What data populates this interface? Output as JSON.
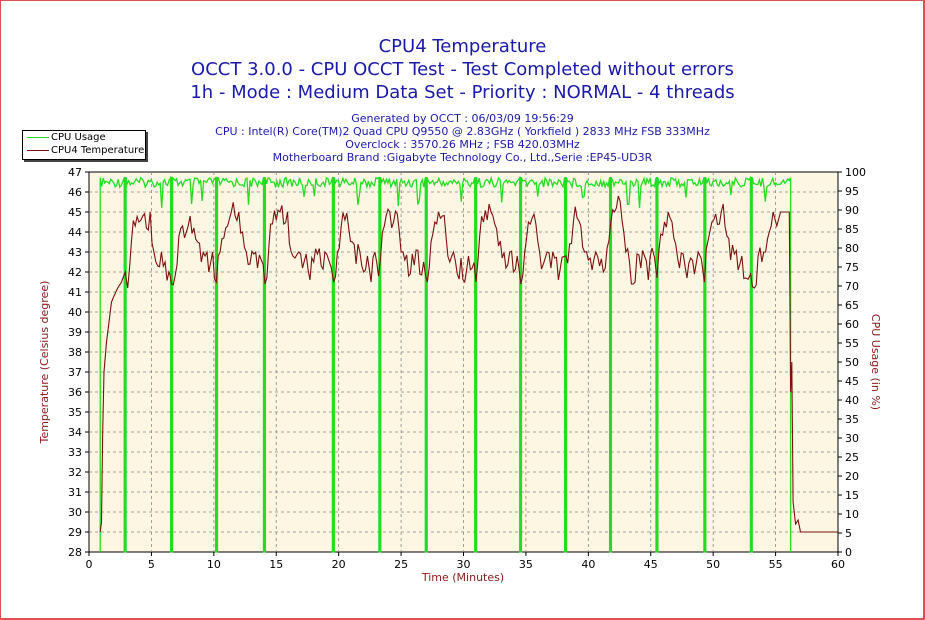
{
  "chart_data": {
    "type": "line",
    "title": "CPU4 Temperature",
    "subtitle_lines": [
      "OCCT 3.0.0 - CPU OCCT Test - Test Completed without errors",
      "1h - Mode : Medium Data Set - Priority : NORMAL - 4 threads"
    ],
    "info_lines": [
      "Generated by OCCT : 06/03/09 19:56:29",
      "CPU : Intel(R) Core(TM)2 Quad CPU Q9550 @ 2.83GHz ( Yorkfield ) 2833 MHz FSB 333MHz",
      "Overclock : 3570.26 MHz ; FSB 420.03MHz",
      "Motherboard Brand :Gigabyte Technology Co., Ltd.,Serie :EP45-UD3R"
    ],
    "xlabel": "Time (Minutes)",
    "ylabel_left": "Temperature (Celsius degree)",
    "ylabel_right": "CPU Usage (in %)",
    "xlim": [
      0,
      60
    ],
    "ylim_left": [
      28,
      47
    ],
    "ylim_right": [
      0,
      100
    ],
    "x_ticks": [
      0,
      5,
      10,
      15,
      20,
      25,
      30,
      35,
      40,
      45,
      50,
      55,
      60
    ],
    "y_left_ticks": [
      28,
      29,
      30,
      31,
      32,
      33,
      34,
      35,
      36,
      37,
      38,
      39,
      40,
      41,
      42,
      43,
      44,
      45,
      46,
      47
    ],
    "y_right_ticks": [
      0,
      5,
      10,
      15,
      20,
      25,
      30,
      35,
      40,
      45,
      50,
      55,
      60,
      65,
      70,
      75,
      80,
      85,
      90,
      95,
      100
    ],
    "grid": true,
    "legend_position": "top-left",
    "series": [
      {
        "name": "CPU Usage",
        "color": "#22dd22",
        "axis": "right",
        "start": 0.9,
        "end": 56.2,
        "baseline": 98.5,
        "dips": [
          2.9,
          6.6,
          10.2,
          14.0,
          19.6,
          23.3,
          27.0,
          31.0,
          34.6,
          38.2,
          41.8,
          45.5,
          49.3,
          53.0
        ],
        "spikes_low": [
          5.8,
          8.2,
          9.1,
          12.8,
          17.2,
          18.1,
          21.6,
          24.8,
          26.4,
          29.8,
          33.1,
          35.9,
          39.6,
          43.2,
          44.1,
          47.8,
          51.4,
          54.2
        ]
      },
      {
        "name": "CPU4 Temperature",
        "color": "#7a1010",
        "axis": "left",
        "points": [
          [
            0.9,
            29
          ],
          [
            1.0,
            29.5
          ],
          [
            1.1,
            34
          ],
          [
            1.2,
            37
          ],
          [
            1.4,
            38.5
          ],
          [
            1.6,
            39.5
          ],
          [
            1.8,
            40.5
          ],
          [
            2.0,
            40.8
          ],
          [
            2.3,
            41.2
          ],
          [
            2.6,
            41.5
          ],
          [
            2.9,
            42
          ],
          [
            3.1,
            41.2
          ],
          [
            3.4,
            43.5
          ],
          [
            3.7,
            44.3
          ],
          [
            4.0,
            44.5
          ],
          [
            4.3,
            44.8
          ],
          [
            4.6,
            44.2
          ],
          [
            4.9,
            45
          ],
          [
            5.2,
            43
          ],
          [
            5.5,
            42.3
          ],
          [
            5.8,
            43
          ],
          [
            6.1,
            42.5
          ],
          [
            6.4,
            42
          ],
          [
            6.6,
            41.4
          ],
          [
            6.9,
            41.8
          ],
          [
            7.2,
            43.8
          ],
          [
            7.5,
            44.3
          ],
          [
            7.8,
            44
          ],
          [
            8.1,
            44.8
          ],
          [
            8.4,
            44.2
          ],
          [
            8.7,
            43.5
          ],
          [
            9.0,
            42.5
          ],
          [
            9.3,
            42.8
          ],
          [
            9.6,
            42
          ],
          [
            9.9,
            43
          ],
          [
            10.2,
            41.5
          ],
          [
            10.5,
            43
          ],
          [
            10.8,
            43.7
          ],
          [
            11.1,
            44.3
          ],
          [
            11.4,
            45
          ],
          [
            11.7,
            44.8
          ],
          [
            12.0,
            45
          ],
          [
            12.3,
            44
          ],
          [
            12.6,
            43
          ],
          [
            12.9,
            42.4
          ],
          [
            13.2,
            42.9
          ],
          [
            13.5,
            42.2
          ],
          [
            13.8,
            42.6
          ],
          [
            14.1,
            41.4
          ],
          [
            14.4,
            43.2
          ],
          [
            14.7,
            44.4
          ],
          [
            15.0,
            44.6
          ],
          [
            15.3,
            45
          ],
          [
            15.6,
            44.4
          ],
          [
            15.9,
            45
          ],
          [
            16.2,
            43
          ],
          [
            16.5,
            42.7
          ],
          [
            16.8,
            43
          ],
          [
            17.1,
            42.2
          ],
          [
            17.4,
            42.9
          ],
          [
            17.7,
            41.6
          ],
          [
            18.0,
            42.5
          ],
          [
            18.3,
            42.9
          ],
          [
            18.6,
            42.3
          ],
          [
            18.9,
            43
          ],
          [
            19.2,
            42.6
          ],
          [
            19.6,
            41.5
          ],
          [
            19.9,
            43
          ],
          [
            20.2,
            44.3
          ],
          [
            20.5,
            44.6
          ],
          [
            20.8,
            44.2
          ],
          [
            21.1,
            43.5
          ],
          [
            21.4,
            42.4
          ],
          [
            21.7,
            43
          ],
          [
            22.0,
            42
          ],
          [
            22.3,
            42.8
          ],
          [
            22.6,
            41.5
          ],
          [
            22.9,
            43
          ],
          [
            23.2,
            41.8
          ],
          [
            23.5,
            44
          ],
          [
            23.8,
            44.8
          ],
          [
            24.1,
            45
          ],
          [
            24.4,
            44.5
          ],
          [
            24.7,
            44.9
          ],
          [
            25.0,
            43
          ],
          [
            25.3,
            42.6
          ],
          [
            25.6,
            41.8
          ],
          [
            25.9,
            42.9
          ],
          [
            26.2,
            43.1
          ],
          [
            26.5,
            41.9
          ],
          [
            26.8,
            42.5
          ],
          [
            27.1,
            41.5
          ],
          [
            27.4,
            43.5
          ],
          [
            27.7,
            44.5
          ],
          [
            28.0,
            45
          ],
          [
            28.3,
            44.8
          ],
          [
            28.6,
            43.8
          ],
          [
            28.9,
            42.5
          ],
          [
            29.2,
            43
          ],
          [
            29.5,
            41.9
          ],
          [
            29.8,
            42.7
          ],
          [
            30.1,
            41.5
          ],
          [
            30.4,
            42.8
          ],
          [
            30.7,
            42.2
          ],
          [
            31.0,
            41.5
          ],
          [
            31.3,
            43.8
          ],
          [
            31.6,
            44.5
          ],
          [
            31.9,
            44.6
          ],
          [
            32.2,
            45
          ],
          [
            32.5,
            44.4
          ],
          [
            32.8,
            43.3
          ],
          [
            33.1,
            42.7
          ],
          [
            33.4,
            42.2
          ],
          [
            33.7,
            43
          ],
          [
            34.0,
            42
          ],
          [
            34.3,
            42.8
          ],
          [
            34.6,
            41.4
          ],
          [
            34.9,
            43
          ],
          [
            35.2,
            44.5
          ],
          [
            35.5,
            44.7
          ],
          [
            35.8,
            44.4
          ],
          [
            36.1,
            43
          ],
          [
            36.4,
            42.4
          ],
          [
            36.7,
            43
          ],
          [
            37.0,
            42.2
          ],
          [
            37.3,
            42.7
          ],
          [
            37.6,
            41.6
          ],
          [
            38.2,
            42.8
          ],
          [
            38.5,
            43.4
          ],
          [
            38.8,
            44.5
          ],
          [
            39.1,
            44.7
          ],
          [
            39.4,
            44.3
          ],
          [
            39.7,
            43
          ],
          [
            40.0,
            42.6
          ],
          [
            40.3,
            42.1
          ],
          [
            40.6,
            43
          ],
          [
            40.9,
            42.3
          ],
          [
            41.2,
            42
          ],
          [
            41.5,
            43.2
          ],
          [
            41.8,
            44.5
          ],
          [
            42.1,
            45
          ],
          [
            42.4,
            45.8
          ],
          [
            42.7,
            44.6
          ],
          [
            43.0,
            43
          ],
          [
            43.3,
            42.5
          ],
          [
            43.6,
            41.4
          ],
          [
            43.9,
            42.9
          ],
          [
            44.2,
            42.2
          ],
          [
            44.5,
            42.8
          ],
          [
            44.8,
            41.6
          ],
          [
            45.1,
            43.2
          ],
          [
            45.5,
            41.7
          ],
          [
            45.8,
            43.9
          ],
          [
            46.1,
            44.5
          ],
          [
            46.4,
            45
          ],
          [
            46.7,
            44.5
          ],
          [
            47.0,
            43.4
          ],
          [
            47.3,
            42.2
          ],
          [
            47.6,
            42.9
          ],
          [
            47.9,
            41.7
          ],
          [
            48.2,
            42.7
          ],
          [
            48.5,
            41.9
          ],
          [
            48.8,
            43
          ],
          [
            49.3,
            41.5
          ],
          [
            49.6,
            43.6
          ],
          [
            49.9,
            44.5
          ],
          [
            50.2,
            44.9
          ],
          [
            50.5,
            44.4
          ],
          [
            50.8,
            45.4
          ],
          [
            51.1,
            43.8
          ],
          [
            51.4,
            42.6
          ],
          [
            51.7,
            42.9
          ],
          [
            52.0,
            42.1
          ],
          [
            52.3,
            42.8
          ],
          [
            52.6,
            41.7
          ],
          [
            53.0,
            41.9
          ],
          [
            53.3,
            41.2
          ],
          [
            53.6,
            42.8
          ],
          [
            53.9,
            42.5
          ],
          [
            54.2,
            43
          ],
          [
            54.5,
            44
          ],
          [
            54.8,
            45
          ],
          [
            55.4,
            45
          ],
          [
            56.1,
            45
          ],
          [
            56.2,
            36
          ],
          [
            56.3,
            37.5
          ],
          [
            56.4,
            30.5
          ],
          [
            56.6,
            29.4
          ],
          [
            56.8,
            29.6
          ],
          [
            57.0,
            29
          ],
          [
            60.0,
            29
          ]
        ]
      }
    ]
  }
}
